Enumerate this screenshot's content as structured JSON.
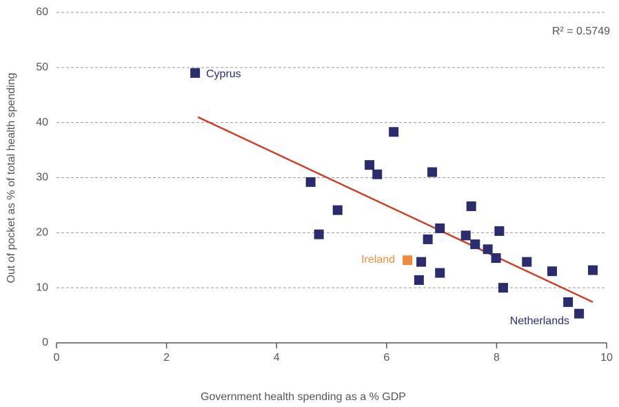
{
  "chart_data": {
    "type": "scatter",
    "x_label": "Government health spending as a % GDP",
    "y_label": "Out of pocket as % of total health spending",
    "xlim": [
      0,
      10
    ],
    "xticks": [
      0,
      2,
      4,
      6,
      8,
      10
    ],
    "ylim": [
      0,
      60
    ],
    "yticks": [
      0,
      10,
      20,
      30,
      40,
      50,
      60
    ],
    "grid": true,
    "series": [
      {
        "color": "#2b2c6e",
        "x": [
          2.52,
          4.62,
          4.77,
          5.11,
          5.69,
          5.83,
          6.13,
          6.83,
          6.63,
          6.59,
          6.75,
          6.97,
          6.97,
          7.54,
          7.44,
          7.61,
          7.84,
          7.99,
          8.05,
          8.12,
          8.55,
          9.01,
          9.3,
          9.5,
          9.75
        ],
        "values": [
          49.0,
          29.2,
          19.7,
          24.1,
          32.3,
          30.6,
          38.3,
          31.0,
          14.7,
          11.4,
          18.8,
          20.8,
          12.7,
          24.8,
          19.5,
          17.9,
          17.0,
          15.4,
          20.3,
          10.0,
          14.7,
          13.0,
          7.4,
          5.3,
          13.2
        ]
      },
      {
        "color": "#f08a3c",
        "x": [
          6.38
        ],
        "values": [
          15.0
        ]
      }
    ],
    "trendline": {
      "color": "#c8432b",
      "x": [
        2.57,
        9.75
      ],
      "values": [
        41.0,
        7.4
      ]
    },
    "annotations": [
      "R² = 0.5749",
      "Cyprus",
      "Ireland",
      "Netherlands"
    ]
  }
}
